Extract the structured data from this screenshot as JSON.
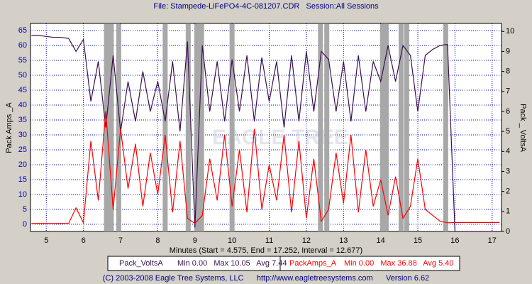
{
  "chart_data": {
    "type": "line",
    "title": "File: Stampede-LiFePO4-4C-081207.CDR   Session:All Sessions",
    "x_label": "Minutes (Start = 4.575, End = 17.252, Interval = 12.677)",
    "y_label": "Pack Amps _A",
    "y2_label": "Pack _ VoltsA",
    "watermark": "EAGLE TREE",
    "footer": "(C) 2003-2008 Eagle Tree Systems, LLC      http://www.eagletreesystems.com      Version 6.62",
    "xlim": [
      4.575,
      17.252
    ],
    "xticks": [
      5,
      6,
      7,
      8,
      9,
      10,
      11,
      12,
      13,
      14,
      15,
      16,
      17
    ],
    "ylim": [
      -2.4,
      67.4
    ],
    "yticks": [
      0,
      5,
      10,
      15,
      20,
      25,
      30,
      35,
      40,
      45,
      50,
      55,
      60,
      65
    ],
    "y2lim": [
      0,
      10.4
    ],
    "y2ticks": [
      0,
      1,
      2,
      3,
      4,
      5,
      6,
      7,
      8,
      9,
      10
    ],
    "grid": true,
    "session_markers": [
      6.62,
      6.75,
      6.95,
      8.2,
      8.82,
      9.05,
      9.18,
      10.0,
      12.38,
      12.55,
      14.05,
      14.15,
      14.55,
      14.7,
      15.75
    ],
    "x": [
      4.6,
      4.8,
      5.0,
      5.2,
      5.4,
      5.6,
      5.8,
      6.0,
      6.2,
      6.4,
      6.6,
      6.8,
      7.0,
      7.2,
      7.4,
      7.6,
      7.8,
      8.0,
      8.2,
      8.4,
      8.6,
      8.8,
      9.0,
      9.2,
      9.4,
      9.6,
      9.8,
      10.0,
      10.2,
      10.4,
      10.6,
      10.8,
      11.0,
      11.2,
      11.4,
      11.6,
      11.8,
      12.0,
      12.2,
      12.4,
      12.6,
      12.8,
      13.0,
      13.2,
      13.4,
      13.6,
      13.8,
      14.0,
      14.2,
      14.4,
      14.6,
      14.8,
      15.0,
      15.2,
      15.4,
      15.6,
      15.8,
      16.0,
      16.2,
      16.4,
      16.6,
      16.8,
      17.0,
      17.2
    ],
    "series": [
      {
        "name": "Pack_VoltsA",
        "stats": "Min 0.00   Max 10.05   Avg 7.44",
        "color": "#3c1050",
        "axis": "y2",
        "values": [
          9.8,
          9.8,
          9.75,
          9.7,
          9.7,
          9.65,
          9.0,
          9.6,
          6.5,
          8.5,
          5.2,
          8.8,
          5.0,
          7.5,
          5.5,
          8.0,
          6.0,
          7.5,
          5.5,
          8.5,
          5.0,
          9.5,
          0.2,
          9.3,
          6.0,
          8.5,
          5.5,
          8.6,
          6.0,
          8.8,
          5.5,
          8.7,
          6.5,
          8.5,
          5.2,
          8.8,
          5.5,
          9.0,
          6.0,
          9.0,
          8.6,
          6.0,
          8.5,
          5.5,
          8.8,
          6.0,
          8.5,
          7.5,
          9.3,
          7.5,
          9.3,
          8.8,
          6.0,
          8.8,
          9.1,
          9.3,
          9.35,
          0,
          0,
          0,
          0,
          0,
          0,
          0
        ]
      },
      {
        "name": "PackAmps_A",
        "stats": "Min 0.00   Max 36.88   Avg 5.40",
        "color": "#ff0000",
        "values": [
          0.3,
          0.3,
          0.3,
          0.3,
          0.3,
          0.3,
          5.5,
          0.5,
          28,
          8,
          38,
          5,
          32,
          12,
          27,
          6,
          24,
          10,
          30,
          4,
          28,
          2,
          0.3,
          3,
          22,
          8,
          30,
          6,
          25,
          4,
          32,
          5,
          20,
          8,
          30,
          4,
          28,
          2,
          22,
          1,
          5,
          24,
          7,
          30,
          4,
          25,
          6,
          15,
          3,
          16,
          2,
          6,
          22,
          5,
          3,
          1,
          0.5,
          0.6,
          0.6,
          0.6,
          0.6,
          0.6,
          0.6,
          0.6
        ]
      }
    ]
  }
}
